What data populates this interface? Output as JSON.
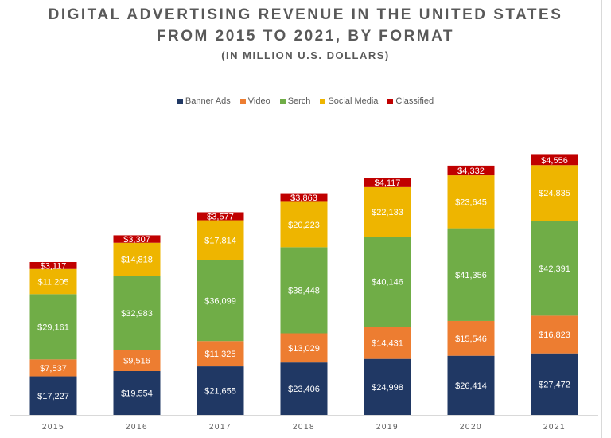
{
  "chart_data": {
    "type": "bar",
    "stacked": true,
    "title": "DIGITAL ADVERTISING REVENUE IN THE UNITED STATES",
    "title_line2": "FROM 2015 TO 2021, BY FORMAT",
    "subtitle": "(IN MILLION U.S. DOLLARS)",
    "xlabel": "",
    "ylabel": "",
    "ylim": [
      0,
      120000
    ],
    "grid": false,
    "legend_position": "top",
    "categories": [
      "2015",
      "2016",
      "2017",
      "2018",
      "2019",
      "2020",
      "2021"
    ],
    "series": [
      {
        "name": "Banner Ads",
        "color": "#203864",
        "values": [
          17227,
          19554,
          21655,
          23406,
          24998,
          26414,
          27472
        ],
        "labels": [
          "$17,227",
          "$19,554",
          "$21,655",
          "$23,406",
          "$24,998",
          "$26,414",
          "$27,472"
        ]
      },
      {
        "name": "Video",
        "color": "#ED7D31",
        "values": [
          7537,
          9516,
          11325,
          13029,
          14431,
          15546,
          16823
        ],
        "labels": [
          "$7,537",
          "$9,516",
          "$11,325",
          "$13,029",
          "$14,431",
          "$15,546",
          "$16,823"
        ]
      },
      {
        "name": "Serch",
        "color": "#70AD47",
        "values": [
          29161,
          32983,
          36099,
          38448,
          40146,
          41356,
          42391
        ],
        "labels": [
          "$29,161",
          "$32,983",
          "$36,099",
          "$38,448",
          "$40,146",
          "$41,356",
          "$42,391"
        ]
      },
      {
        "name": "Social Media",
        "color": "#EEB500",
        "values": [
          11205,
          14818,
          17814,
          20223,
          22133,
          23645,
          24835
        ],
        "labels": [
          "$11,205",
          "$14,818",
          "$17,814",
          "$20,223",
          "$22,133",
          "$23,645",
          "$24,835"
        ]
      },
      {
        "name": "Classified",
        "color": "#C00000",
        "values": [
          3117,
          3307,
          3577,
          3863,
          4117,
          4332,
          4556
        ],
        "labels": [
          "$3,117",
          "$3,307",
          "$3,577",
          "$3,863",
          "$4,117",
          "$4,332",
          "$4,556"
        ]
      }
    ]
  }
}
